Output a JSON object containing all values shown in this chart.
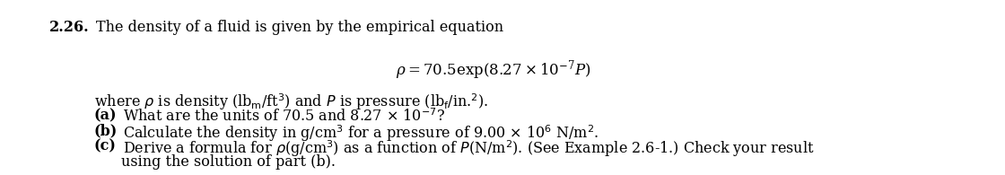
{
  "background_color": "#ffffff",
  "problem_number": "2.26.",
  "title_text": "The density of a fluid is given by the empirical equation",
  "equation": "$\\rho = 70.5 \\exp(8.27 \\times 10^{-7}P)$",
  "where_line": "where $\\rho$ is density (lb$_{\\mathrm{m}}$/ft$^3$) and $P$ is pressure (lb$_{\\mathrm{f}}$/in.$^2$).",
  "part_a_bold": "(a)",
  "part_a_text": " What are the units of 70.5 and 8.27 $\\times$ 10$^{-7}$?",
  "part_b_bold": "(b)",
  "part_b_text": " Calculate the density in g/cm$^3$ for a pressure of 9.00 $\\times$ 10$^6$ N/m$^2$.",
  "part_c_bold": "(c)",
  "part_c_text": " Derive a formula for $\\rho$(g/cm$^3$) as a function of $P$(N/m$^2$). (See Example 2.6-1.) Check your result",
  "part_c2_text": "using the solution of part (b).",
  "font_size": 11.5,
  "figwidth": 11.2,
  "figheight": 1.95,
  "dpi": 100
}
